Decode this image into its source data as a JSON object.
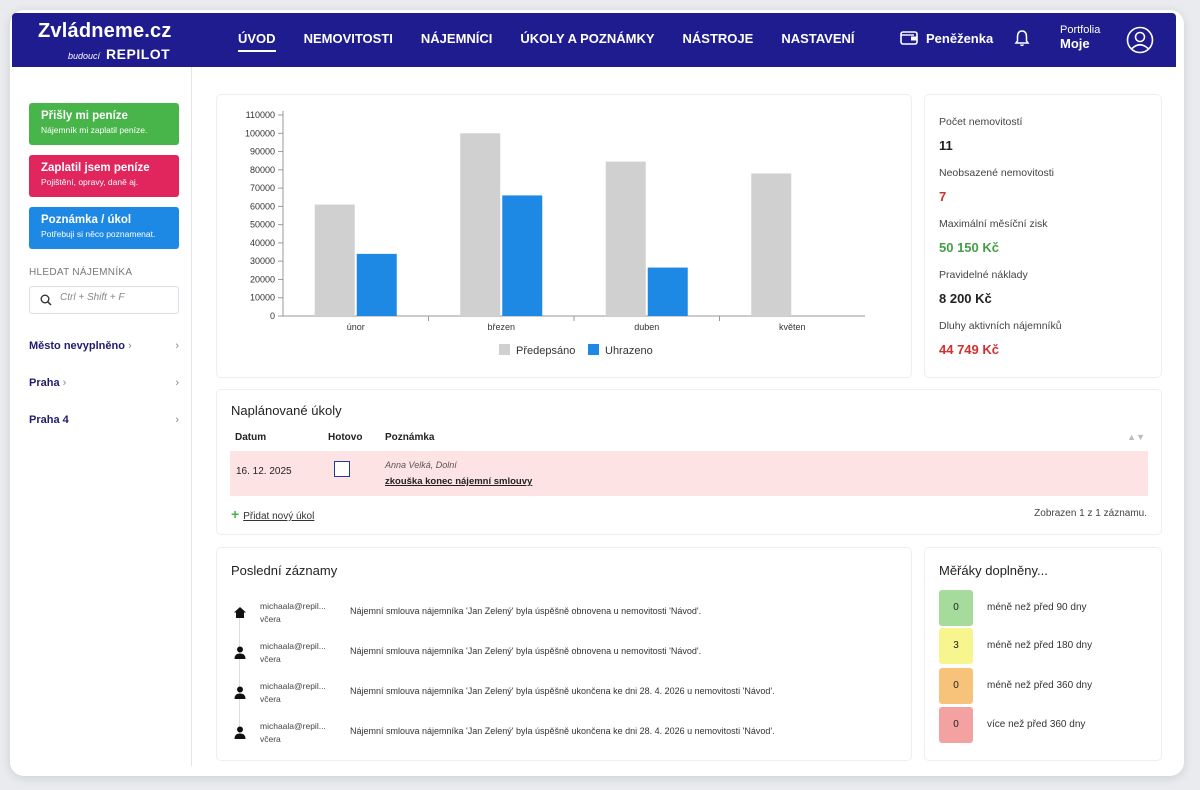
{
  "header": {
    "logo": "Zvládneme.cz",
    "logo_sub": "budoucí",
    "logo_brand": "REPILOT",
    "nav": [
      "ÚVOD",
      "NEMOVITOSTI",
      "NÁJEMNÍCI",
      "ÚKOLY A POZNÁMKY",
      "NÁSTROJE",
      "NASTAVENÍ"
    ],
    "wallet": "Peněženka",
    "portfolio_label": "Portfolia",
    "portfolio_value": "Moje"
  },
  "sidebar": {
    "btn_money_in": {
      "title": "Přišly mi peníze",
      "sub": "Nájemník mi zaplatil peníze."
    },
    "btn_money_out": {
      "title": "Zaplatil jsem peníze",
      "sub": "Pojištění, opravy, daně aj."
    },
    "btn_note": {
      "title": "Poznámka / úkol",
      "sub": "Potřebuji si něco poznamenat."
    },
    "search_label": "HLEDAT NÁJEMNÍKA",
    "search_placeholder": "Ctrl + Shift + F",
    "cities": [
      "Město nevyplněno",
      "Praha",
      "Praha 4"
    ]
  },
  "chart_data": {
    "type": "bar",
    "categories": [
      "únor",
      "březen",
      "duben",
      "květen"
    ],
    "series": [
      {
        "name": "Předepsáno",
        "values": [
          61000,
          100000,
          84500,
          78000
        ],
        "color": "#d0d0d0"
      },
      {
        "name": "Uhrazeno",
        "values": [
          34000,
          66000,
          26500,
          null
        ],
        "color": "#1e88e5"
      }
    ],
    "ylim": [
      0,
      110000
    ],
    "yticks": [
      0,
      10000,
      20000,
      30000,
      40000,
      50000,
      60000,
      70000,
      80000,
      90000,
      100000,
      110000
    ],
    "legend": "bottom"
  },
  "stats": [
    {
      "label": "Počet nemovitostí",
      "value": "11",
      "color": "#222222"
    },
    {
      "label": "Neobsazené nemovitosti",
      "value": "7",
      "color": "#d32f2f"
    },
    {
      "label": "Maximální měsíční zisk",
      "value": "50 150 Kč",
      "color": "#43a047"
    },
    {
      "label": "Pravidelné náklady",
      "value": "8 200 Kč",
      "color": "#222222"
    },
    {
      "label": "Dluhy aktivních nájemníků",
      "value": "44 749 Kč",
      "color": "#d32f2f"
    }
  ],
  "tasks": {
    "title": "Naplánované úkoly",
    "headers": [
      "Datum",
      "Hotovo",
      "Poznámka"
    ],
    "row": {
      "date": "16. 12. 2025",
      "who": "Anna Velká, Dolní",
      "note": "zkouška konec nájemní smlouvy"
    },
    "add": "Přidat nový úkol",
    "shown": "Zobrazen 1 z 1 záznamu."
  },
  "records": {
    "title": "Poslední záznamy",
    "items": [
      {
        "user": "michaala@repil...",
        "when": "včera",
        "icon": "home-icon",
        "msg": "Nájemní smlouva nájemníka 'Jan Zelený' byla úspěšně obnovena u nemovitosti 'Návod'."
      },
      {
        "user": "michaala@repil...",
        "when": "včera",
        "icon": "person-icon",
        "msg": "Nájemní smlouva nájemníka 'Jan Zelený' byla úspěšně obnovena u nemovitosti 'Návod'."
      },
      {
        "user": "michaala@repil...",
        "when": "včera",
        "icon": "person-icon",
        "msg": "Nájemní smlouva nájemníka 'Jan Zelený' byla úspěšně ukončena ke dni 28. 4. 2026 u nemovitosti 'Návod'."
      },
      {
        "user": "michaala@repil...",
        "when": "včera",
        "icon": "person-icon",
        "msg": "Nájemní smlouva nájemníka 'Jan Zelený' byla úspěšně ukončena ke dni 28. 4. 2026 u nemovitosti 'Návod'."
      }
    ]
  },
  "gauges": {
    "title": "Měřáky doplněny...",
    "items": [
      {
        "value": "0",
        "label": "méně než před 90 dny",
        "color": "#a5dc9b"
      },
      {
        "value": "3",
        "label": "méně než před 180 dny",
        "color": "#f7f58d"
      },
      {
        "value": "0",
        "label": "méně než před 360 dny",
        "color": "#f7c279"
      },
      {
        "value": "0",
        "label": "více než před 360 dny",
        "color": "#f3a1a1"
      }
    ]
  }
}
